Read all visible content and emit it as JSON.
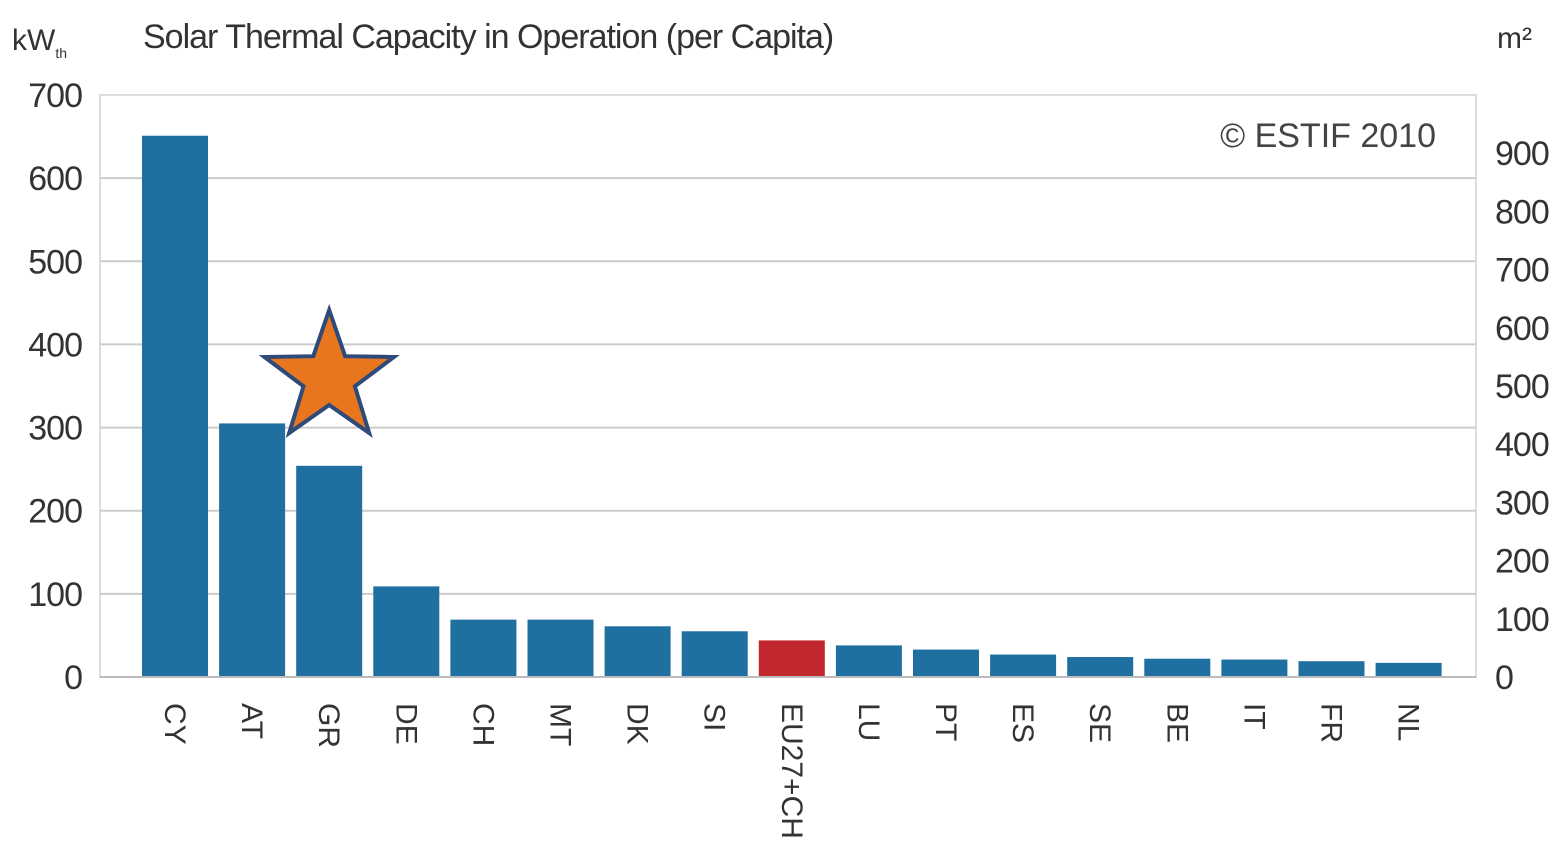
{
  "chart_data": {
    "type": "bar",
    "title": "Solar Thermal Capacity in Operation (per Capita)",
    "ylabel_left": "kW",
    "ylabel_left_subscript": "th",
    "ylabel_right": "m²",
    "copyright": "© ESTIF 2010",
    "categories": [
      "CY",
      "AT",
      "GR",
      "DE",
      "CH",
      "MT",
      "DK",
      "SI",
      "EU27+CH",
      "LU",
      "PT",
      "ES",
      "SE",
      "BE",
      "IT",
      "FR",
      "NL"
    ],
    "values": [
      651,
      305,
      254,
      109,
      69,
      69,
      61,
      55,
      44,
      38,
      33,
      27,
      24,
      22,
      21,
      19,
      17
    ],
    "highlight_category": "EU27+CH",
    "ylim_left": [
      0,
      700
    ],
    "yticks_left": [
      "0",
      "100",
      "200",
      "300",
      "400",
      "500",
      "600",
      "700"
    ],
    "yticks_right": [
      "0",
      "100",
      "200",
      "300",
      "400",
      "500",
      "600",
      "700",
      "800",
      "900"
    ],
    "grid": true,
    "colors": {
      "bar": "#1f6fa0",
      "highlight": "#c0282d",
      "star_fill": "#e8761e",
      "star_stroke": "#2e4a78",
      "grid": "#cccccc"
    },
    "annotations": [
      {
        "type": "star",
        "category": "GR"
      }
    ]
  }
}
